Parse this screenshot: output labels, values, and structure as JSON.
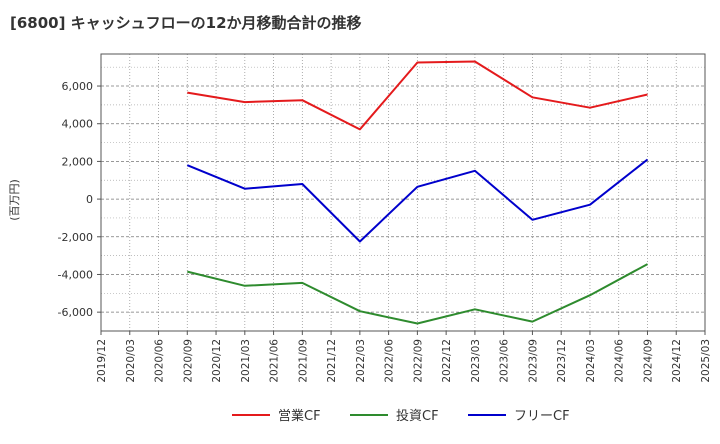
{
  "chart_data": {
    "type": "line",
    "title": "[6800]  キャッシュフローの12か月移動合計の推移",
    "ylabel": "(百万円)",
    "xlabel": "",
    "ylim": [
      -7000,
      7700
    ],
    "yticks": [
      -6000,
      -4000,
      -2000,
      0,
      2000,
      4000,
      6000
    ],
    "ytick_labels": [
      "-6,000",
      "-4,000",
      "-2,000",
      "0",
      "2,000",
      "4,000",
      "6,000"
    ],
    "categories": [
      "2019/12",
      "2020/03",
      "2020/06",
      "2020/09",
      "2020/12",
      "2021/03",
      "2021/06",
      "2021/09",
      "2021/12",
      "2022/03",
      "2022/06",
      "2022/09",
      "2022/12",
      "2023/03",
      "2023/06",
      "2023/09",
      "2023/12",
      "2024/03",
      "2024/06",
      "2024/09",
      "2024/12",
      "2025/03"
    ],
    "grid": true,
    "legend_position": "bottom",
    "series": [
      {
        "name": "営業CF",
        "color": "#e41a1c",
        "values": [
          null,
          null,
          null,
          5650,
          null,
          5150,
          null,
          5250,
          null,
          3700,
          null,
          7250,
          null,
          7300,
          null,
          5400,
          null,
          4850,
          null,
          5550,
          null,
          null
        ]
      },
      {
        "name": "投資CF",
        "color": "#2e8b2e",
        "values": [
          null,
          null,
          null,
          -3850,
          null,
          -4600,
          null,
          -4450,
          null,
          -5950,
          null,
          -6600,
          null,
          -5850,
          null,
          -6500,
          null,
          -5100,
          null,
          -3450,
          null,
          null
        ]
      },
      {
        "name": "フリーCF",
        "color": "#0000cc",
        "values": [
          null,
          null,
          null,
          1800,
          null,
          550,
          null,
          800,
          null,
          -2250,
          null,
          650,
          null,
          1500,
          null,
          -1100,
          null,
          -300,
          null,
          2100,
          null,
          null
        ]
      }
    ]
  }
}
